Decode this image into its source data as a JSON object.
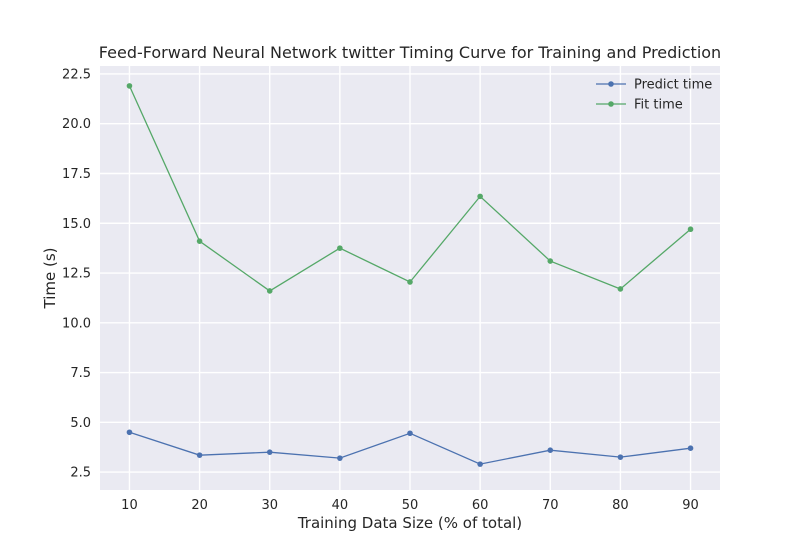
{
  "chart_data": {
    "type": "line",
    "title": "Feed-Forward Neural Network twitter Timing Curve for Training and Prediction",
    "xlabel": "Training Data Size (% of total)",
    "ylabel": "Time (s)",
    "x": [
      10,
      20,
      30,
      40,
      50,
      60,
      70,
      80,
      90
    ],
    "x_ticks": [
      "10",
      "20",
      "30",
      "40",
      "50",
      "60",
      "70",
      "80",
      "90"
    ],
    "y_ticks": [
      "2.5",
      "5.0",
      "7.5",
      "10.0",
      "12.5",
      "15.0",
      "17.5",
      "20.0",
      "22.5"
    ],
    "xlim": [
      5.8,
      94.2
    ],
    "ylim": [
      1.6,
      22.9
    ],
    "grid": true,
    "legend_position": "top-right",
    "series": [
      {
        "name": "Predict time",
        "color": "#4c72b0",
        "values": [
          4.5,
          3.35,
          3.5,
          3.2,
          4.45,
          2.9,
          3.6,
          3.25,
          3.7
        ]
      },
      {
        "name": "Fit time",
        "color": "#55a868",
        "values": [
          21.9,
          14.1,
          11.6,
          13.75,
          12.05,
          16.35,
          13.1,
          11.7,
          14.7
        ]
      }
    ]
  }
}
